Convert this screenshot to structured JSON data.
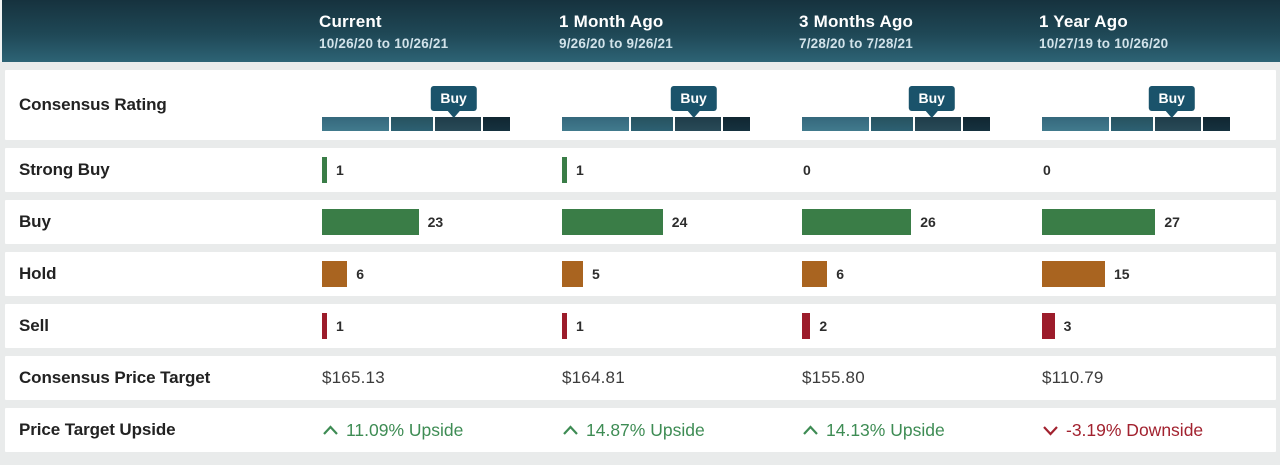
{
  "chart_data": {
    "type": "table",
    "columns": [
      {
        "label": "Current",
        "date_range": "10/26/20 to 10/26/21"
      },
      {
        "label": "1 Month Ago",
        "date_range": "9/26/20 to 9/26/21"
      },
      {
        "label": "3 Months Ago",
        "date_range": "7/28/20 to 7/28/21"
      },
      {
        "label": "1 Year Ago",
        "date_range": "10/27/19 to 10/26/20"
      }
    ],
    "rating": {
      "label": "Consensus Rating",
      "badges": [
        "Buy",
        "Buy",
        "Buy",
        "Buy"
      ],
      "pointer_pct": [
        70,
        70,
        69,
        69
      ]
    },
    "strong_buy": {
      "label": "Strong Buy",
      "values": [
        1,
        1,
        0,
        0
      ]
    },
    "buy": {
      "label": "Buy",
      "values": [
        23,
        24,
        26,
        27
      ]
    },
    "hold": {
      "label": "Hold",
      "values": [
        6,
        5,
        6,
        15
      ]
    },
    "sell": {
      "label": "Sell",
      "values": [
        1,
        1,
        2,
        3
      ]
    },
    "price_target": {
      "label": "Consensus Price Target",
      "values": [
        "$165.13",
        "$164.81",
        "$155.80",
        "$110.79"
      ]
    },
    "upside": {
      "label": "Price Target Upside",
      "values": [
        "11.09% Upside",
        "14.87% Upside",
        "14.13% Upside",
        "-3.19% Downside"
      ],
      "directions": [
        "up",
        "up",
        "up",
        "down"
      ]
    }
  },
  "colors": {
    "header_gradient_top": "#16323e",
    "header_gradient_bottom": "#2d6375",
    "buy_bar": "#3a7d47",
    "hold_bar": "#a96420",
    "sell_bar": "#9c1c2b",
    "upside_green": "#3e8c54",
    "downside_red": "#a2222f",
    "badge_background": "#1a536b",
    "rating_scale_segments": [
      "#417a8d",
      "#2d6173",
      "#294a58",
      "#16323f"
    ]
  }
}
